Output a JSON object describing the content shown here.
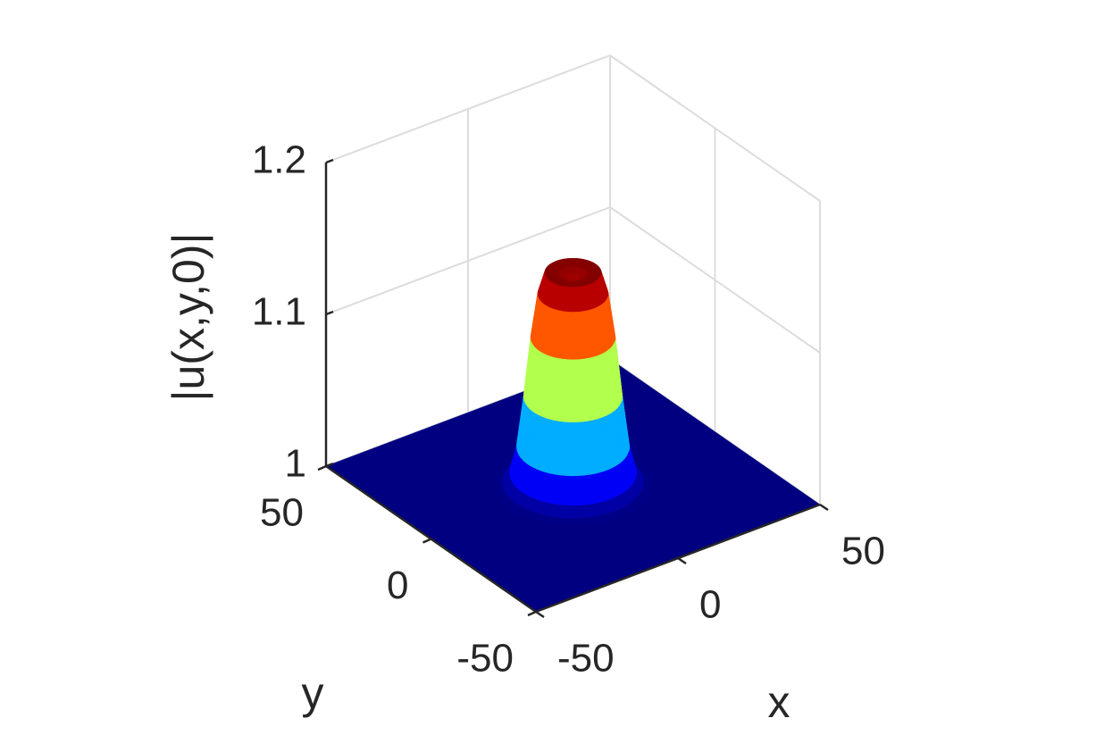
{
  "chart_data": {
    "type": "surface",
    "colormap": "jet",
    "grid": true,
    "xlabel": "x",
    "ylabel": "y",
    "zlabel": "|u(x,y,0)|",
    "xlim": [
      -50,
      50
    ],
    "ylim": [
      -50,
      50
    ],
    "zlim": [
      1,
      1.2
    ],
    "xticks": [
      -50,
      0,
      50
    ],
    "yticks": [
      -50,
      0,
      50
    ],
    "zticks": [
      1,
      1.1,
      1.2
    ],
    "r": [
      0,
      2,
      4,
      6,
      8,
      10,
      12,
      14,
      16,
      18,
      20,
      22,
      26
    ],
    "values": [
      1.136,
      1.137,
      1.139,
      1.141,
      1.14,
      1.126,
      1.097,
      1.058,
      1.025,
      1.008,
      1.002,
      1.0,
      1.0
    ]
  }
}
